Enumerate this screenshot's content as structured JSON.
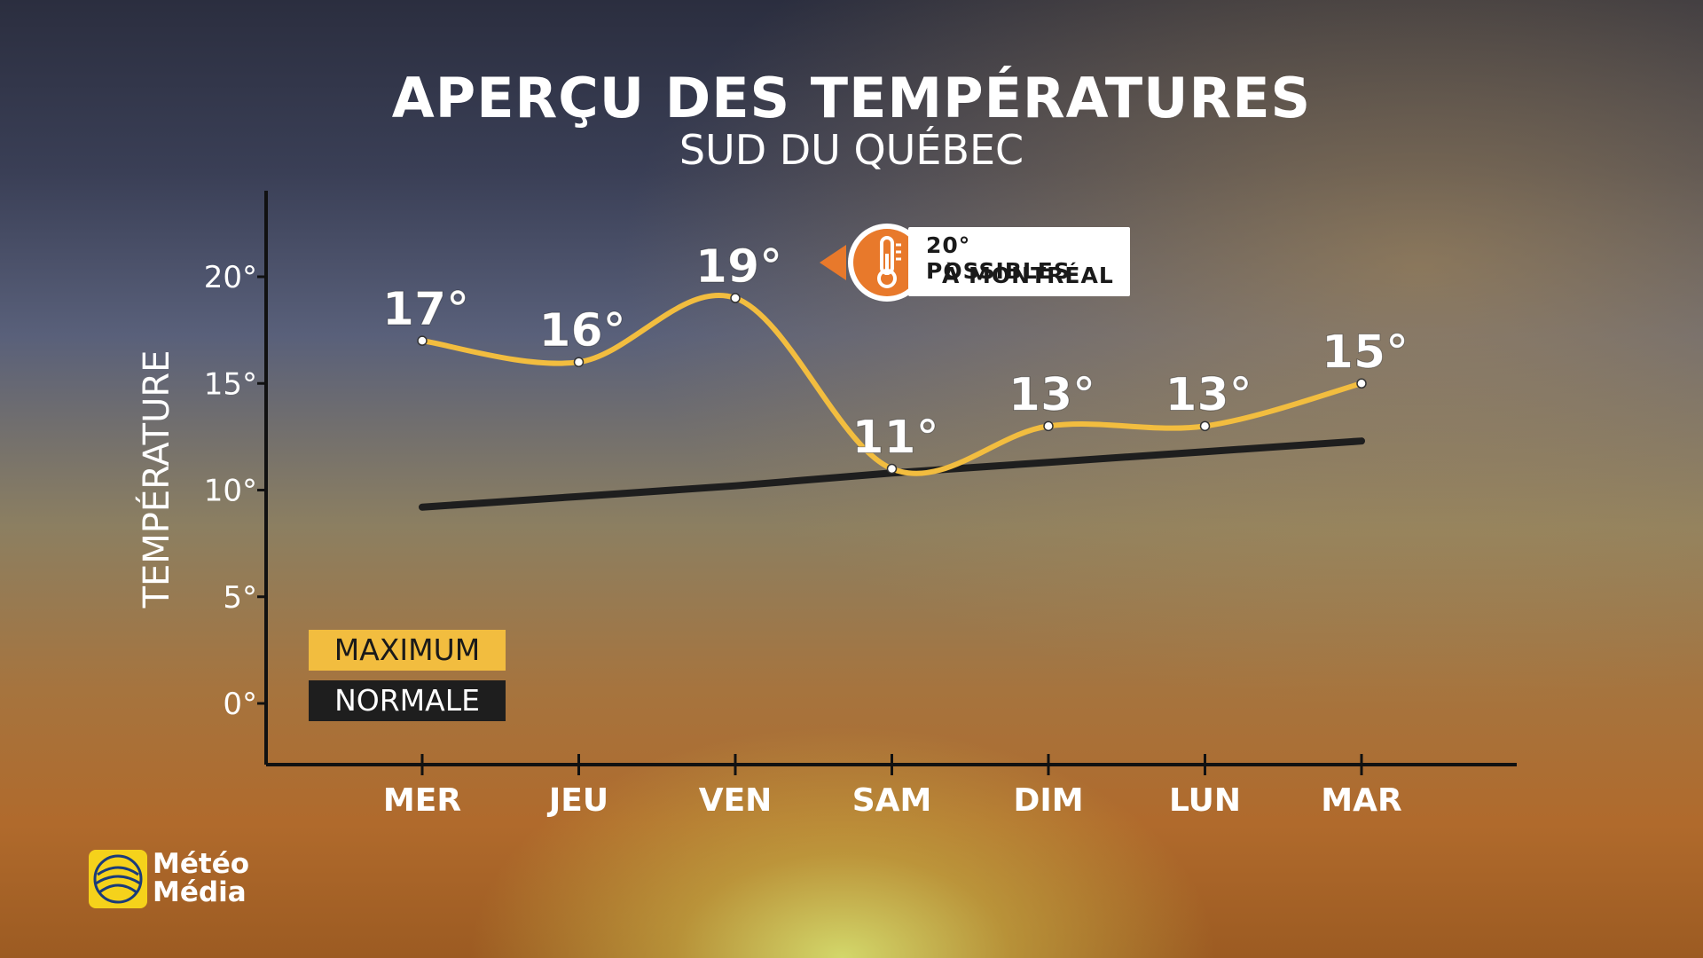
{
  "title": "APERÇU DES TEMPÉRATURES",
  "subtitle": "SUD DU QUÉBEC",
  "callout": {
    "line1": "20° POSSIBLES",
    "line2": "À MONTRÉAL",
    "icon": "thermometer-icon",
    "color": "#e8792b"
  },
  "logo": {
    "line1": "Météo",
    "line2": "Média"
  },
  "chart_data": {
    "type": "line",
    "ylabel": "TEMPÉRATURE",
    "ylim": [
      -3,
      23
    ],
    "yticks": [
      0,
      5,
      10,
      15,
      20
    ],
    "ytick_labels": [
      "0°",
      "5°",
      "10°",
      "15°",
      "20°"
    ],
    "categories": [
      "MER",
      "JEU",
      "VEN",
      "SAM",
      "DIM",
      "LUN",
      "MAR"
    ],
    "series": [
      {
        "name": "MAXIMUM",
        "color": "#f2bd3f",
        "values": [
          17,
          16,
          19,
          11,
          13,
          13,
          15
        ],
        "labels": [
          "17°",
          "16°",
          "19°",
          "11°",
          "13°",
          "13°",
          "15°"
        ]
      },
      {
        "name": "NORMALE",
        "color": "#1e1e1e",
        "values": [
          9.2,
          9.7,
          10.2,
          10.8,
          11.3,
          11.8,
          12.3
        ]
      }
    ],
    "grid": false,
    "legend_position": "bottom-left"
  }
}
